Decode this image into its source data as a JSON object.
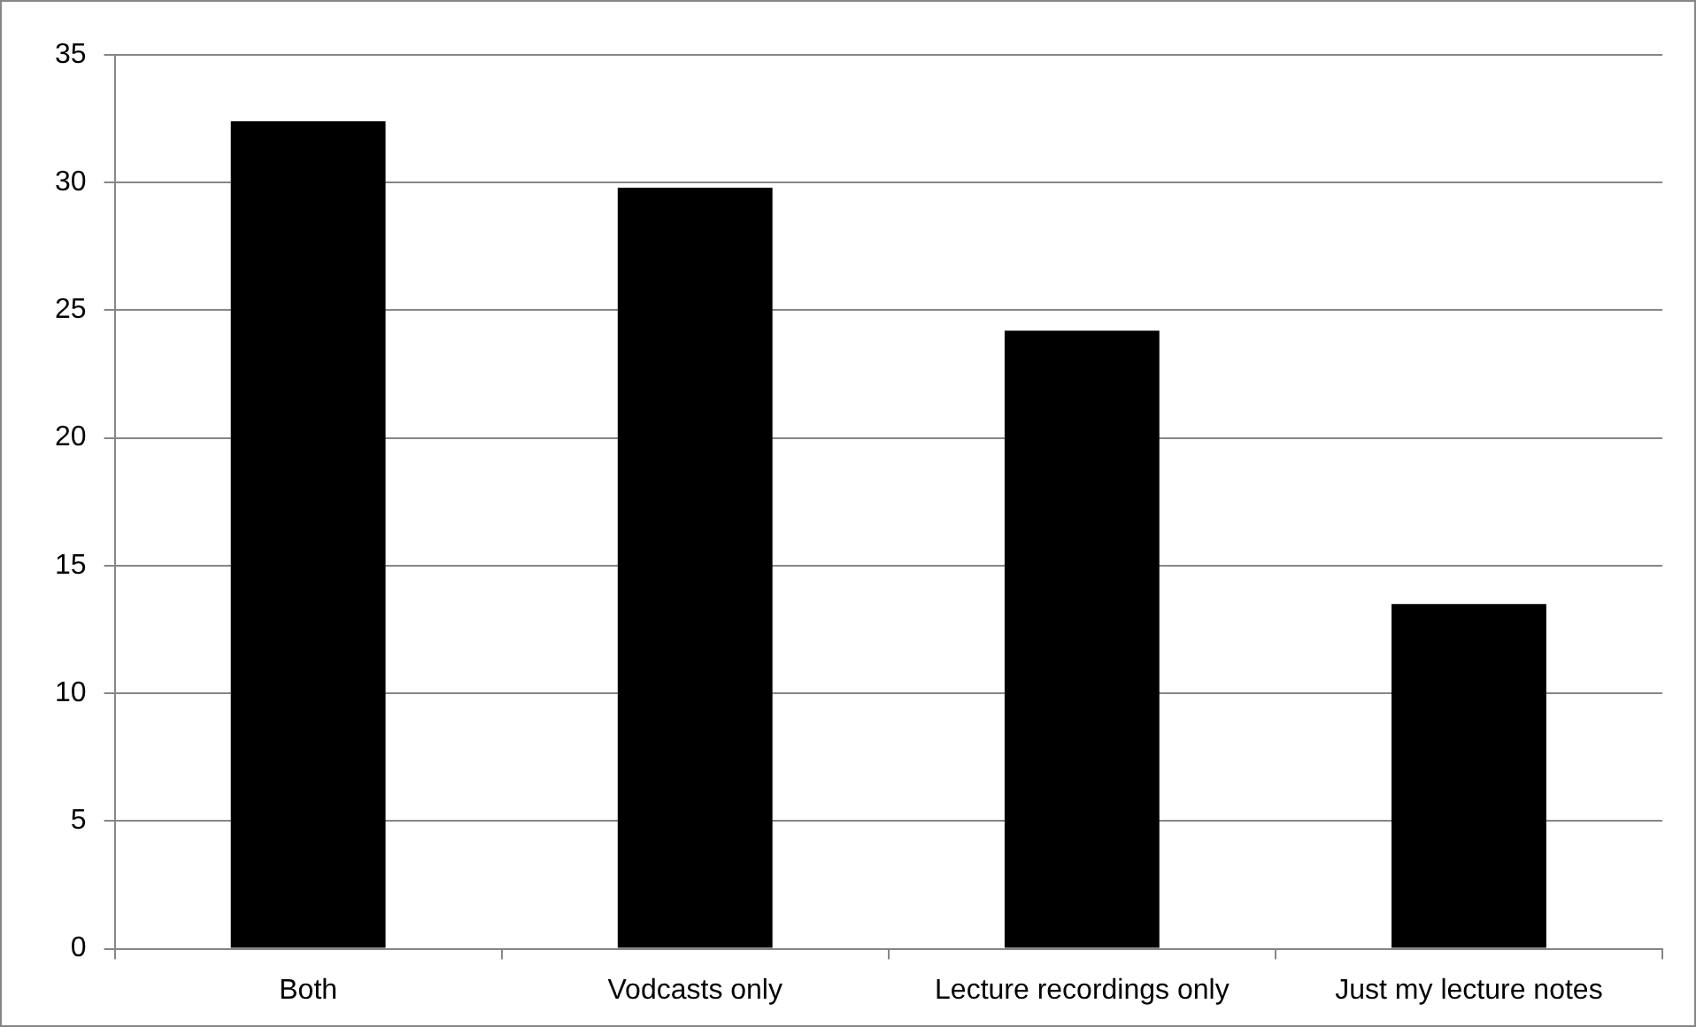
{
  "chart_data": {
    "type": "bar",
    "categories": [
      "Both",
      "Vodcasts only",
      "Lecture recordings only",
      "Just my lecture notes"
    ],
    "values": [
      32.4,
      29.8,
      24.2,
      13.5
    ],
    "color": "#000000",
    "ylim": [
      0,
      35
    ],
    "yticks": [
      0,
      5,
      10,
      15,
      20,
      25,
      30,
      35
    ],
    "grid": "y",
    "legend": false
  }
}
